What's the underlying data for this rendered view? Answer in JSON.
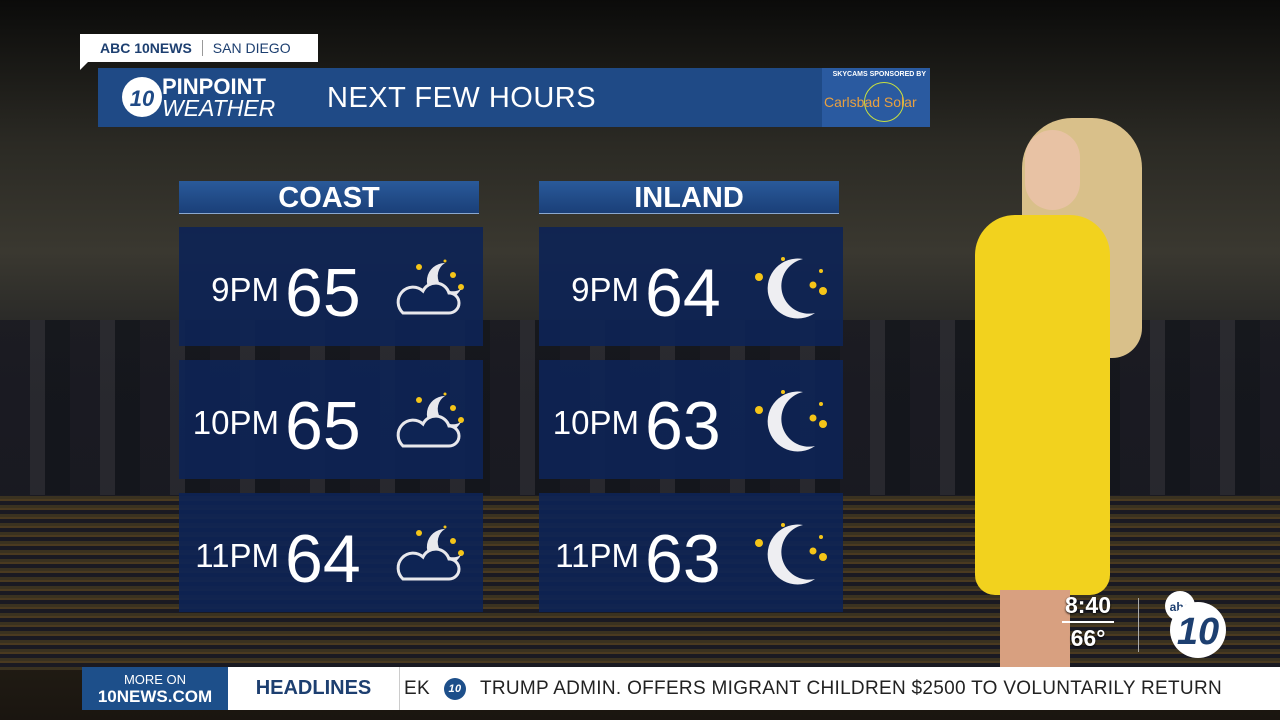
{
  "tag": {
    "station": "ABC 10NEWS",
    "city": "SAN DIEGO"
  },
  "header": {
    "logo_top": "PINPOINT",
    "logo_bottom": "WEATHER",
    "logo_badge": "10",
    "title": "NEXT FEW HOURS",
    "sponsor_label": "SKYCAMS SPONSORED BY",
    "sponsor": "Carlsbad Solar"
  },
  "coast": {
    "label": "COAST",
    "rows": [
      {
        "time": "9PM",
        "temp": "65",
        "icon": "partly-cloudy-night-icon"
      },
      {
        "time": "10PM",
        "temp": "65",
        "icon": "partly-cloudy-night-icon"
      },
      {
        "time": "11PM",
        "temp": "64",
        "icon": "partly-cloudy-night-icon"
      }
    ]
  },
  "inland": {
    "label": "INLAND",
    "rows": [
      {
        "time": "9PM",
        "temp": "64",
        "icon": "clear-night-moon-icon"
      },
      {
        "time": "10PM",
        "temp": "63",
        "icon": "clear-night-moon-icon"
      },
      {
        "time": "11PM",
        "temp": "63",
        "icon": "clear-night-moon-icon"
      }
    ]
  },
  "bug": {
    "time": "8:40",
    "temp": "66°",
    "logo": "10"
  },
  "ticker": {
    "more_on": "MORE ON",
    "site": "10NEWS.COM",
    "section": "HEADLINES",
    "prev": "EK",
    "headline": "TRUMP ADMIN. OFFERS MIGRANT CHILDREN $2500 TO VOLUNTARILY RETURN"
  },
  "colors": {
    "panel": "#0e2454",
    "header": "#1f4a86",
    "star": "#f5c518"
  }
}
